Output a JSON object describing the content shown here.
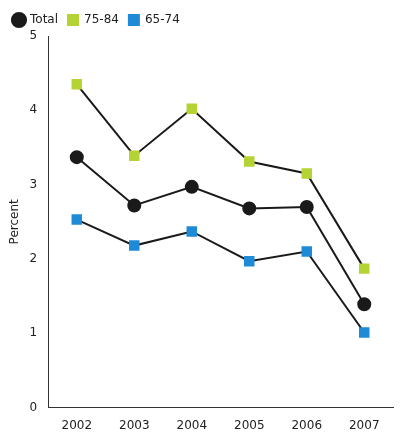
{
  "chart_data": {
    "type": "line",
    "y_label": "Percent",
    "categories": [
      "2002",
      "2003",
      "2004",
      "2005",
      "2006",
      "2007"
    ],
    "series": [
      {
        "name": "Total",
        "color": "#1a1a1a",
        "marker": "circle",
        "line_style": "solid",
        "values": [
          3.37,
          2.72,
          2.97,
          2.68,
          2.7,
          1.39
        ]
      },
      {
        "name": "75-84",
        "color": "#b4d334",
        "marker": "square",
        "line_style": "solid",
        "values": [
          4.35,
          3.39,
          4.02,
          3.31,
          3.15,
          1.87
        ]
      },
      {
        "name": "65-74",
        "color": "#1f8ad6",
        "marker": "square",
        "line_style": "solid",
        "values": [
          2.53,
          2.18,
          2.37,
          1.97,
          2.1,
          1.01
        ]
      }
    ],
    "ylim": [
      0,
      5
    ],
    "yticks": [
      0,
      1,
      2,
      3,
      4,
      5
    ],
    "grid": false,
    "legend": "top-left"
  }
}
